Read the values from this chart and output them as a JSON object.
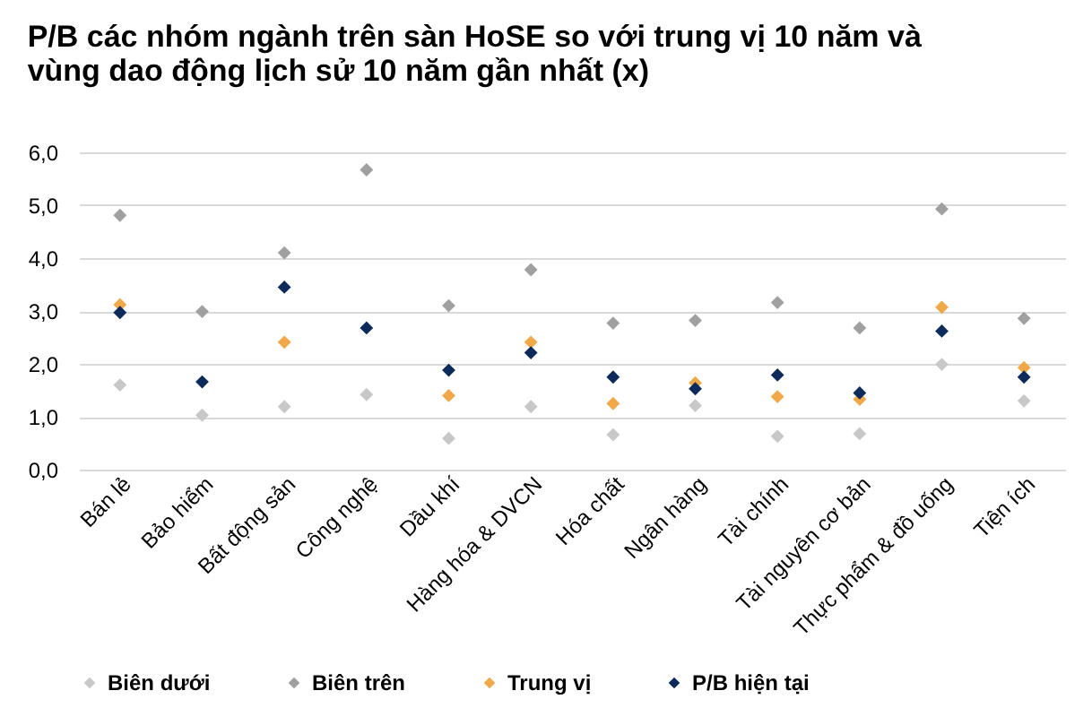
{
  "chart_data": {
    "type": "scatter",
    "title": "P/B các nhóm ngành trên sàn HoSE so với trung vị 10 năm và vùng dao động lịch sử 10 năm gần nhất (x)",
    "categories": [
      "Bán lẻ",
      "Bảo hiểm",
      "Bất động sản",
      "Công nghệ",
      "Dầu khí",
      "Hàng hóa & DVCN",
      "Hóa chất",
      "Ngân hàng",
      "Tài chính",
      "Tài nguyên cơ bản",
      "Thực phẩm & đồ uống",
      "Tiện ích"
    ],
    "series": [
      {
        "name": "Biên dưới",
        "color": "#c8c8c8",
        "values": [
          1.6,
          1.03,
          1.19,
          1.42,
          0.59,
          1.19,
          0.66,
          1.21,
          0.63,
          0.68,
          1.99,
          1.3
        ]
      },
      {
        "name": "Biên trên",
        "color": "#a0a0a0",
        "values": [
          4.81,
          2.99,
          4.1,
          5.67,
          3.1,
          3.78,
          2.77,
          2.82,
          3.16,
          2.68,
          4.93,
          2.86
        ]
      },
      {
        "name": "Trung vị",
        "color": "#f0a848",
        "values": [
          3.12,
          null,
          2.41,
          null,
          1.4,
          2.41,
          1.25,
          1.64,
          1.38,
          1.33,
          3.07,
          1.93
        ]
      },
      {
        "name": "P/B hiện tại",
        "color": "#0d2b5a",
        "values": [
          2.97,
          1.66,
          3.45,
          2.68,
          1.88,
          2.21,
          1.75,
          1.53,
          1.79,
          1.45,
          2.62,
          1.75
        ]
      }
    ],
    "ylim": [
      0,
      6
    ],
    "yticks": [
      {
        "value": 0,
        "label": "0,0"
      },
      {
        "value": 1,
        "label": "1,0"
      },
      {
        "value": 2,
        "label": "2,0"
      },
      {
        "value": 3,
        "label": "3,0"
      },
      {
        "value": 4,
        "label": "4,0"
      },
      {
        "value": 5,
        "label": "5,0"
      },
      {
        "value": 6,
        "label": "6,0"
      }
    ],
    "grid": "y",
    "legend": "bottom",
    "marker": "diamond"
  }
}
